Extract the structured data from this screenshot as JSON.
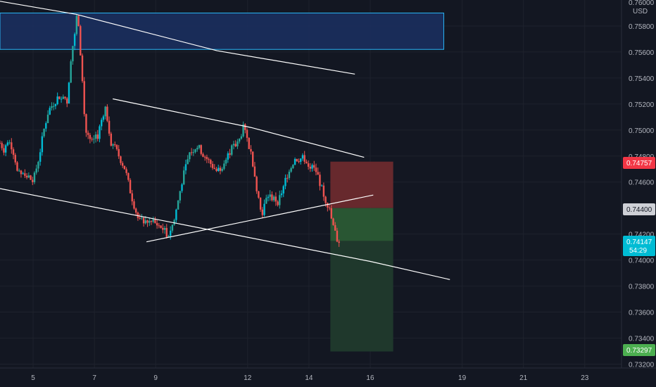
{
  "currency": "USD",
  "colors": {
    "background": "#131722",
    "bull": "#26a69a",
    "bull_bright": "#00bcd4",
    "bear": "#ef5350",
    "trendline": "#ffffff",
    "zone_fill": "#1b2f5e",
    "zone_border": "#29b6f6",
    "stop_zone": "#6b2a2e",
    "target_zone_upper": "#2a5a35",
    "target_zone_lower": "#203a2d",
    "price_badge": "#00bcd4",
    "stop_badge": "#f23645",
    "entry_badge": "#ced0d6",
    "target_badge": "#4caf50"
  },
  "price_axis": {
    "ticks": [
      "0.75800",
      "0.75600",
      "0.75400",
      "0.75200",
      "0.75000",
      "0.74800",
      "0.74600",
      "0.74200",
      "0.74000",
      "0.73800",
      "0.73600",
      "0.73400",
      "0.73200"
    ],
    "top_partial_label": "0.76000"
  },
  "time_axis": {
    "ticks": [
      "5",
      "7",
      "9",
      "12",
      "14",
      "16",
      "19",
      "21",
      "23"
    ]
  },
  "badges": {
    "stop": "0.74757",
    "entry": "0.74400",
    "current_price": "0.74147",
    "countdown": "54:29",
    "target": "0.73297"
  },
  "chart_data": {
    "type": "candlestick",
    "title": "",
    "xlabel": "",
    "ylabel": "",
    "ylim": [
      0.7317,
      0.76
    ],
    "x_range": [
      3.92,
      24.2
    ],
    "x_ticks": [
      5,
      7,
      9,
      12,
      14,
      16,
      19,
      21,
      23
    ],
    "close_path": [
      [
        3.92,
        0.749
      ],
      [
        4.05,
        0.7485
      ],
      [
        4.2,
        0.7495
      ],
      [
        4.4,
        0.748
      ],
      [
        4.5,
        0.7465
      ],
      [
        4.65,
        0.7468
      ],
      [
        4.8,
        0.7465
      ],
      [
        5.0,
        0.746
      ],
      [
        5.2,
        0.748
      ],
      [
        5.35,
        0.75
      ],
      [
        5.5,
        0.7515
      ],
      [
        5.8,
        0.7525
      ],
      [
        6.0,
        0.7528
      ],
      [
        6.1,
        0.752
      ],
      [
        6.25,
        0.756
      ],
      [
        6.38,
        0.7575
      ],
      [
        6.42,
        0.7587
      ],
      [
        6.5,
        0.7575
      ],
      [
        6.6,
        0.754
      ],
      [
        6.7,
        0.75
      ],
      [
        6.9,
        0.749
      ],
      [
        7.1,
        0.7495
      ],
      [
        7.2,
        0.7505
      ],
      [
        7.35,
        0.7518
      ],
      [
        7.45,
        0.7505
      ],
      [
        7.55,
        0.749
      ],
      [
        7.7,
        0.7485
      ],
      [
        8.0,
        0.747
      ],
      [
        8.2,
        0.745
      ],
      [
        8.45,
        0.743
      ],
      [
        8.7,
        0.743
      ],
      [
        9.0,
        0.7428
      ],
      [
        9.2,
        0.7425
      ],
      [
        9.4,
        0.7419
      ],
      [
        9.6,
        0.743
      ],
      [
        9.85,
        0.746
      ],
      [
        10.1,
        0.7482
      ],
      [
        10.35,
        0.7488
      ],
      [
        10.6,
        0.748
      ],
      [
        11.0,
        0.7468
      ],
      [
        11.25,
        0.7475
      ],
      [
        11.45,
        0.7485
      ],
      [
        11.7,
        0.749
      ],
      [
        11.85,
        0.7502
      ],
      [
        12.0,
        0.7492
      ],
      [
        12.15,
        0.7478
      ],
      [
        12.3,
        0.7455
      ],
      [
        12.45,
        0.7435
      ],
      [
        12.65,
        0.745
      ],
      [
        13.0,
        0.7445
      ],
      [
        13.15,
        0.7455
      ],
      [
        13.35,
        0.747
      ],
      [
        13.55,
        0.7478
      ],
      [
        13.85,
        0.7478
      ],
      [
        14.05,
        0.7472
      ],
      [
        14.25,
        0.7468
      ],
      [
        14.45,
        0.7452
      ],
      [
        14.65,
        0.744
      ],
      [
        14.8,
        0.7425
      ],
      [
        14.92,
        0.7416
      ],
      [
        15.0,
        0.7414
      ]
    ],
    "series": [
      {
        "name": "",
        "type": "line",
        "points": [
          [
            3.92,
            0.7599
          ],
          [
            6.4,
            0.7589
          ],
          [
            11.0,
            0.7561
          ],
          [
            15.5,
            0.7543
          ]
        ]
      },
      {
        "name": "",
        "type": "line",
        "points": [
          [
            7.6,
            0.7524
          ],
          [
            12.1,
            0.7502
          ],
          [
            15.8,
            0.7479
          ]
        ]
      },
      {
        "name": "",
        "type": "line",
        "points": [
          [
            8.7,
            0.7414
          ],
          [
            16.1,
            0.745
          ]
        ]
      },
      {
        "name": "",
        "type": "line",
        "points": [
          [
            3.92,
            0.7455
          ],
          [
            16.0,
            0.7399
          ],
          [
            18.6,
            0.7385
          ]
        ]
      }
    ],
    "zones": [
      {
        "name": "",
        "y": [
          0.7562,
          0.759
        ],
        "x": [
          3.92,
          18.4
        ]
      },
      {
        "name": "",
        "y": [
          0.744,
          0.74757
        ],
        "x": [
          14.7,
          16.75
        ]
      },
      {
        "name": "",
        "y": [
          0.73297,
          0.744
        ],
        "x": [
          14.7,
          16.75
        ]
      }
    ],
    "current_price": 0.74147,
    "grid": true,
    "legend": "none"
  }
}
